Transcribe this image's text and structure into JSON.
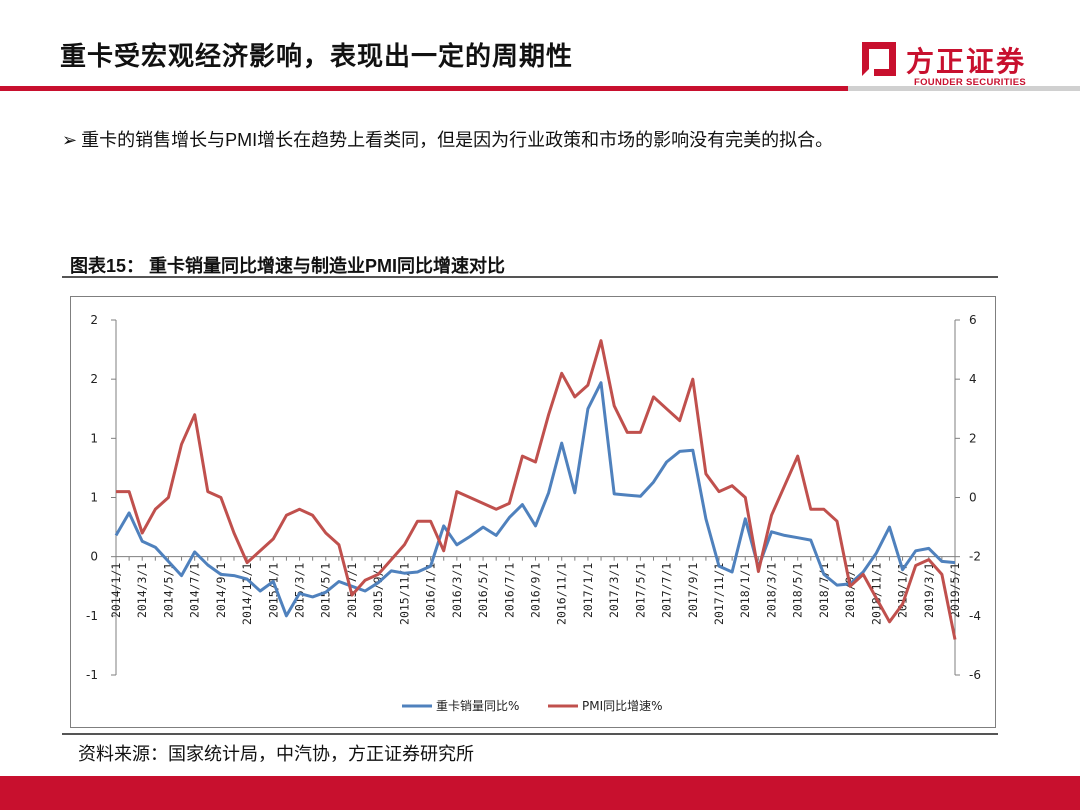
{
  "header": {
    "title": "重卡受宏观经济影响，表现出一定的周期性",
    "logo_cn": "方正证券",
    "logo_en": "FOUNDER SECURITIES"
  },
  "bullet": {
    "arrow": "➢",
    "text": "重卡的销售增长与PMI增长在趋势上看类同，但是因为行业政策和市场的影响没有完美的拟合。"
  },
  "figure": {
    "title": "图表15：  重卡销量同比增速与制造业PMI同比增速对比"
  },
  "source": "资料来源：国家统计局，中汽协，方正证券研究所",
  "colors": {
    "accent": "#c8102e",
    "series_blue": "#4f81bd",
    "series_red": "#c0504d"
  },
  "chart_data": {
    "type": "line",
    "title": "",
    "xlabel": "",
    "ylabel_left": "",
    "ylabel_right": "",
    "x": [
      "2014/1/1",
      "2014/2/1",
      "2014/3/1",
      "2014/4/1",
      "2014/5/1",
      "2014/6/1",
      "2014/7/1",
      "2014/8/1",
      "2014/9/1",
      "2014/10/1",
      "2014/11/1",
      "2014/12/1",
      "2015/1/1",
      "2015/2/1",
      "2015/3/1",
      "2015/4/1",
      "2015/5/1",
      "2015/6/1",
      "2015/7/1",
      "2015/8/1",
      "2015/9/1",
      "2015/10/1",
      "2015/11/1",
      "2015/12/1",
      "2016/1/1",
      "2016/2/1",
      "2016/3/1",
      "2016/4/1",
      "2016/5/1",
      "2016/6/1",
      "2016/7/1",
      "2016/8/1",
      "2016/9/1",
      "2016/10/1",
      "2016/11/1",
      "2016/12/1",
      "2017/1/1",
      "2017/2/1",
      "2017/3/1",
      "2017/4/1",
      "2017/5/1",
      "2017/6/1",
      "2017/7/1",
      "2017/8/1",
      "2017/9/1",
      "2017/10/1",
      "2017/11/1",
      "2017/12/1",
      "2018/1/1",
      "2018/2/1",
      "2018/3/1",
      "2018/4/1",
      "2018/5/1",
      "2018/6/1",
      "2018/7/1",
      "2018/8/1",
      "2018/9/1",
      "2018/10/1",
      "2018/11/1",
      "2018/12/1",
      "2019/1/1",
      "2019/2/1",
      "2019/3/1",
      "2019/4/1",
      "2019/5/1"
    ],
    "x_tick_labels": [
      "2014/1/1",
      "2014/3/1",
      "2014/5/1",
      "2014/7/1",
      "2014/9/1",
      "2014/11/1",
      "2015/1/1",
      "2015/3/1",
      "2015/5/1",
      "2015/7/1",
      "2015/9/1",
      "2015/11/1",
      "2016/1/1",
      "2016/3/1",
      "2016/5/1",
      "2016/7/1",
      "2016/9/1",
      "2016/11/1",
      "2017/1/1",
      "2017/3/1",
      "2017/5/1",
      "2017/7/1",
      "2017/9/1",
      "2017/11/1",
      "2018/1/1",
      "2018/3/1",
      "2018/5/1",
      "2018/7/1",
      "2018/9/1",
      "2018/11/1",
      "2019/1/1",
      "2019/3/1",
      "2019/5/1"
    ],
    "left_axis": {
      "ylim": [
        -1.0,
        2.0
      ],
      "tick_values": [
        -1.0,
        -0.5,
        0,
        0.5,
        1.0,
        1.5,
        2.0
      ],
      "tick_labels": [
        "-1",
        "-1",
        "0",
        "1",
        "1",
        "2",
        "2"
      ]
    },
    "right_axis": {
      "ylim": [
        -6,
        6
      ],
      "tick_values": [
        -6,
        -4,
        -2,
        0,
        2,
        4,
        6
      ],
      "tick_labels": [
        "-6",
        "-4",
        "-2",
        "0",
        "2",
        "4",
        "6"
      ]
    },
    "series": [
      {
        "name": "重卡销量同比%",
        "axis": "left",
        "color": "#4f81bd",
        "values": [
          0.18,
          0.37,
          0.13,
          0.08,
          -0.04,
          -0.16,
          0.04,
          -0.07,
          -0.15,
          -0.16,
          -0.19,
          -0.29,
          -0.21,
          -0.5,
          -0.31,
          -0.34,
          -0.3,
          -0.21,
          -0.25,
          -0.29,
          -0.22,
          -0.12,
          -0.14,
          -0.13,
          -0.08,
          0.26,
          0.1,
          0.17,
          0.25,
          0.18,
          0.33,
          0.44,
          0.26,
          0.54,
          0.96,
          0.54,
          1.25,
          1.47,
          0.53,
          0.52,
          0.51,
          0.63,
          0.8,
          0.89,
          0.9,
          0.32,
          -0.08,
          -0.13,
          0.32,
          -0.09,
          0.21,
          0.18,
          0.16,
          0.14,
          -0.15,
          -0.24,
          -0.23,
          -0.13,
          0.03,
          0.25,
          -0.11,
          0.05,
          0.07,
          -0.04,
          -0.05
        ]
      },
      {
        "name": "PMI同比增速%",
        "axis": "right",
        "color": "#c0504d",
        "values": [
          0.2,
          0.2,
          -1.2,
          -0.4,
          0,
          1.8,
          2.8,
          0.2,
          0,
          -1.2,
          -2.2,
          -1.8,
          -1.4,
          -0.6,
          -0.4,
          -0.6,
          -1.2,
          -1.6,
          -3.3,
          -2.8,
          -2.6,
          -2.1,
          -1.6,
          -0.8,
          -0.8,
          -1.8,
          0.2,
          0,
          -0.2,
          -0.4,
          -0.2,
          1.4,
          1.2,
          2.8,
          4.2,
          3.4,
          3.8,
          5.3,
          3.1,
          2.2,
          2.2,
          3.4,
          3.0,
          2.6,
          4.0,
          0.8,
          0.2,
          0.4,
          0,
          -2.5,
          -0.6,
          0.4,
          1.4,
          -0.4,
          -0.4,
          -0.8,
          -3.0,
          -2.6,
          -3.4,
          -4.2,
          -3.6,
          -2.3,
          -2.1,
          -2.6,
          -4.8
        ]
      }
    ],
    "legend": {
      "position": "bottom",
      "entries": [
        "重卡销量同比%",
        "PMI同比增速%"
      ]
    },
    "grid": false
  }
}
